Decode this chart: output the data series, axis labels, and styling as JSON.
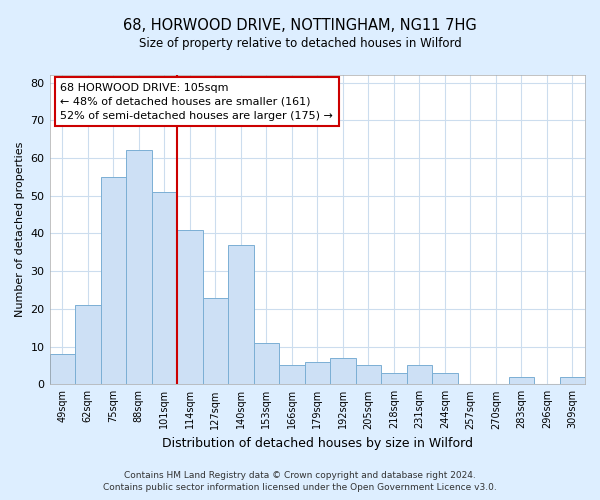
{
  "title": "68, HORWOOD DRIVE, NOTTINGHAM, NG11 7HG",
  "subtitle": "Size of property relative to detached houses in Wilford",
  "xlabel": "Distribution of detached houses by size in Wilford",
  "ylabel": "Number of detached properties",
  "categories": [
    "49sqm",
    "62sqm",
    "75sqm",
    "88sqm",
    "101sqm",
    "114sqm",
    "127sqm",
    "140sqm",
    "153sqm",
    "166sqm",
    "179sqm",
    "192sqm",
    "205sqm",
    "218sqm",
    "231sqm",
    "244sqm",
    "257sqm",
    "270sqm",
    "283sqm",
    "296sqm",
    "309sqm"
  ],
  "values": [
    8,
    21,
    55,
    62,
    51,
    41,
    23,
    37,
    11,
    5,
    6,
    7,
    5,
    3,
    5,
    3,
    0,
    0,
    2,
    0,
    2
  ],
  "bar_color": "#cde0f5",
  "bar_edge_color": "#7bafd4",
  "vline_x_index": 4.5,
  "vline_color": "#cc0000",
  "annotation_text": "68 HORWOOD DRIVE: 105sqm\n← 48% of detached houses are smaller (161)\n52% of semi-detached houses are larger (175) →",
  "annotation_box_color": "#ffffff",
  "annotation_box_edge": "#cc0000",
  "ylim": [
    0,
    82
  ],
  "yticks": [
    0,
    10,
    20,
    30,
    40,
    50,
    60,
    70,
    80
  ],
  "footer": "Contains HM Land Registry data © Crown copyright and database right 2024.\nContains public sector information licensed under the Open Government Licence v3.0.",
  "fig_bg_color": "#ddeeff",
  "plot_bg_color": "#ffffff",
  "grid_color": "#ccddee"
}
